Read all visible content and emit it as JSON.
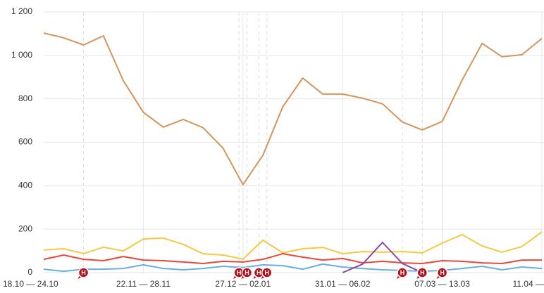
{
  "chart_data": {
    "type": "line",
    "categories": [
      "18.10 — 24.10",
      null,
      null,
      null,
      null,
      "22.11 — 28.11",
      null,
      null,
      null,
      null,
      "27.12 — 02.01",
      null,
      null,
      null,
      null,
      "31.01 — 06.02",
      null,
      null,
      null,
      null,
      "07.03 — 13.03",
      null,
      null,
      null,
      null,
      "11.04 —"
    ],
    "series": [
      {
        "color": "#d4945a",
        "values": [
          1103,
          1081,
          1048,
          1090,
          883,
          738,
          670,
          705,
          667,
          573,
          405,
          540,
          764,
          896,
          822,
          822,
          803,
          777,
          693,
          657,
          696,
          887,
          1055,
          994,
          1003,
          1078
        ]
      },
      {
        "color": "#f5c842",
        "values": [
          104,
          110,
          88,
          117,
          100,
          155,
          159,
          130,
          87,
          81,
          62,
          149,
          91,
          110,
          116,
          87,
          97,
          94,
          97,
          91,
          136,
          175,
          123,
          94,
          120,
          188
        ]
      },
      {
        "color": "#e8483b",
        "values": [
          61,
          81,
          61,
          55,
          74,
          58,
          55,
          49,
          42,
          52,
          49,
          61,
          87,
          71,
          58,
          65,
          45,
          52,
          45,
          42,
          55,
          52,
          45,
          42,
          58,
          58
        ]
      },
      {
        "color": "#6aaee0",
        "values": [
          16,
          6,
          16,
          16,
          19,
          36,
          19,
          13,
          19,
          29,
          23,
          36,
          32,
          16,
          39,
          26,
          19,
          13,
          10,
          6,
          10,
          19,
          29,
          13,
          26,
          19
        ]
      },
      {
        "color": "#8e44ad",
        "values": [
          null,
          null,
          null,
          null,
          null,
          null,
          null,
          null,
          null,
          null,
          null,
          null,
          null,
          null,
          null,
          0,
          39,
          139,
          42,
          0,
          null,
          null,
          null,
          null,
          null,
          null
        ]
      }
    ],
    "ylim": [
      0,
      1200
    ],
    "yticks": [
      0,
      200,
      400,
      600,
      800,
      {
        "value": 1000,
        "label": "1 000"
      },
      {
        "value": 1200,
        "label": "1 200"
      }
    ],
    "grid": true,
    "markers": [
      {
        "x": 2,
        "label": "H"
      },
      {
        "x": 9.8,
        "label": "H"
      },
      {
        "x": 10.2,
        "label": "H"
      },
      {
        "x": 10.8,
        "label": "H"
      },
      {
        "x": 11.2,
        "label": "H"
      },
      {
        "x": 18,
        "label": "H"
      },
      {
        "x": 19,
        "label": "H"
      },
      {
        "x": 20,
        "label": "H"
      }
    ]
  }
}
